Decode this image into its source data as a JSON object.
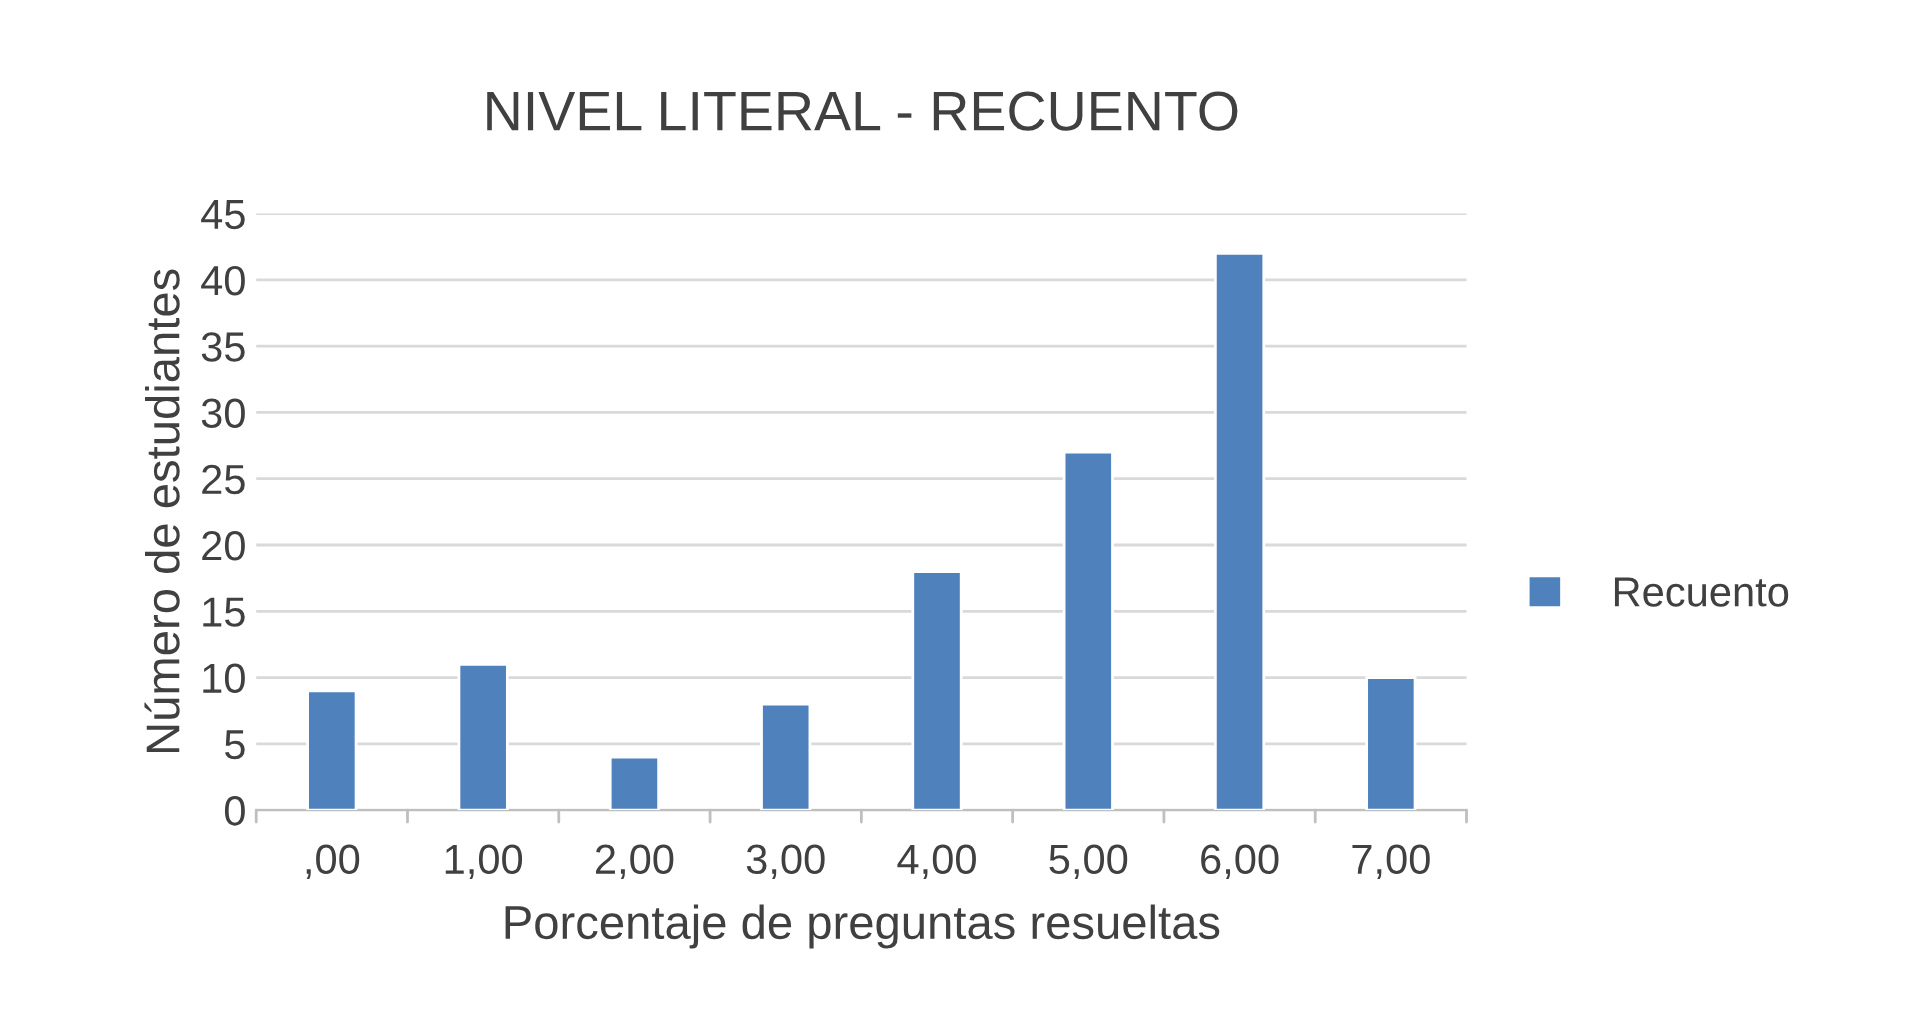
{
  "chart_data": {
    "type": "bar",
    "title": "NIVEL LITERAL - RECUENTO",
    "xlabel": "Porcentaje de preguntas resueltas",
    "ylabel": "Número de estudiantes",
    "categories": [
      ",00",
      "1,00",
      "2,00",
      "3,00",
      "4,00",
      "5,00",
      "6,00",
      "7,00"
    ],
    "series": [
      {
        "name": "Recuento",
        "color": "#4f81bd",
        "values": [
          9,
          11,
          4,
          8,
          18,
          27,
          42,
          10
        ]
      }
    ],
    "ylim": [
      0,
      45
    ],
    "yticks": [
      0,
      5,
      10,
      15,
      20,
      25,
      30,
      35,
      40,
      45
    ],
    "grid": "y",
    "legend": "right"
  }
}
